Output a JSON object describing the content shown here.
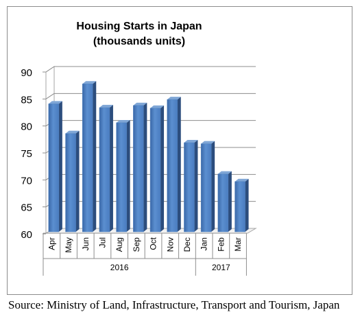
{
  "chart_data": {
    "type": "bar",
    "title": "Housing Starts in Japan",
    "subtitle": "(thousands units)",
    "categories": [
      "Apr",
      "May",
      "Jun",
      "Jul",
      "Aug",
      "Sep",
      "Oct",
      "Nov",
      "Dec",
      "Jan",
      "Feb",
      "Mar"
    ],
    "values": [
      84.1,
      78.6,
      87.8,
      83.4,
      80.6,
      83.8,
      83.3,
      84.9,
      76.9,
      76.7,
      71.1,
      69.7
    ],
    "ylim": [
      60,
      90
    ],
    "yticks": [
      60,
      65,
      70,
      75,
      80,
      85,
      90
    ],
    "xlabel": "",
    "ylabel": "",
    "year_groups": [
      {
        "label": "2016",
        "count": 9
      },
      {
        "label": "2017",
        "count": 3
      }
    ],
    "grid": true,
    "legend": "none",
    "bar_color": "#4f81bd"
  },
  "source": "Source: Ministry of Land, Infrastructure, Transport and Tourism, Japan"
}
